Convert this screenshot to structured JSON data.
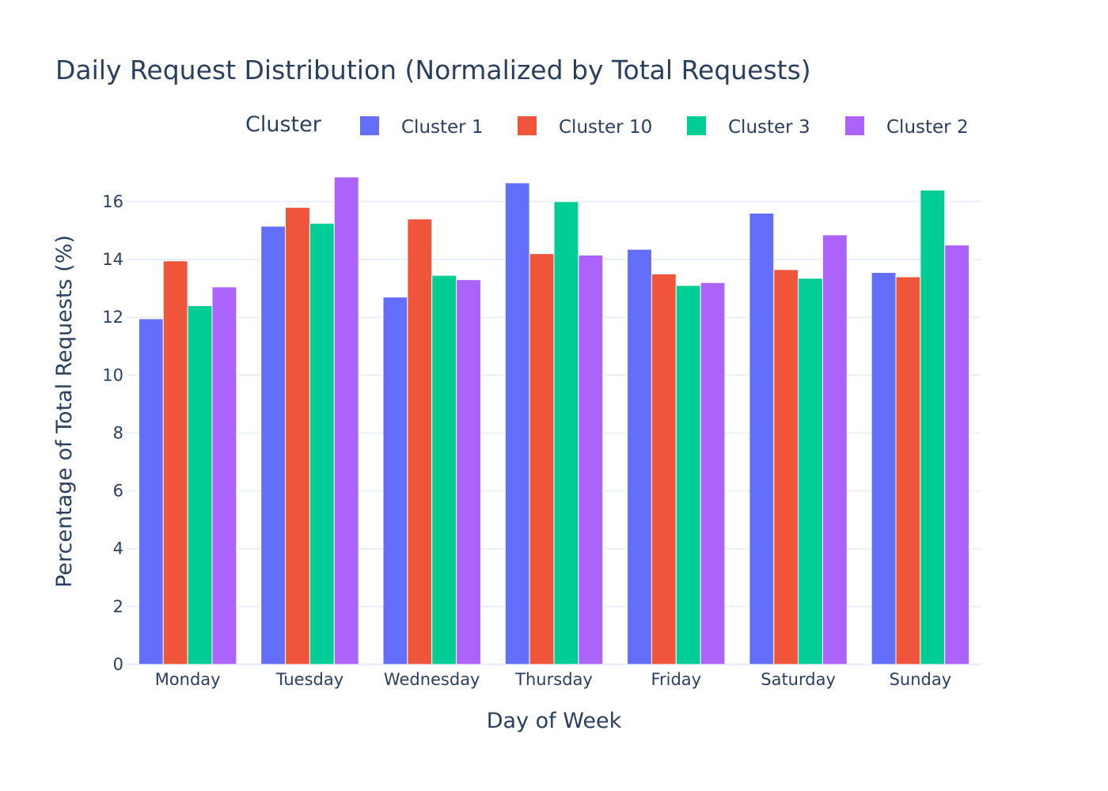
{
  "chart_data": {
    "type": "bar",
    "title": "Daily Request Distribution (Normalized by Total Requests)",
    "xlabel": "Day of Week",
    "ylabel": "Percentage of Total Requests (%)",
    "legend_title": "Cluster",
    "legend_position": "top",
    "grid": true,
    "ylim": [
      0,
      17.5
    ],
    "yticks": [
      0,
      2,
      4,
      6,
      8,
      10,
      12,
      14,
      16
    ],
    "categories": [
      "Monday",
      "Tuesday",
      "Wednesday",
      "Thursday",
      "Friday",
      "Saturday",
      "Sunday"
    ],
    "series": [
      {
        "name": "Cluster 1",
        "color": "#636efa",
        "values": [
          11.95,
          15.15,
          12.7,
          16.65,
          14.35,
          15.6,
          13.55
        ]
      },
      {
        "name": "Cluster 10",
        "color": "#ef553b",
        "values": [
          13.95,
          15.8,
          15.4,
          14.2,
          13.5,
          13.65,
          13.4
        ]
      },
      {
        "name": "Cluster 3",
        "color": "#00cc96",
        "values": [
          12.4,
          15.25,
          13.45,
          16.0,
          13.1,
          13.35,
          16.4
        ]
      },
      {
        "name": "Cluster 2",
        "color": "#ab63fa",
        "values": [
          13.05,
          16.85,
          13.3,
          14.15,
          13.2,
          14.85,
          14.5
        ]
      }
    ]
  }
}
